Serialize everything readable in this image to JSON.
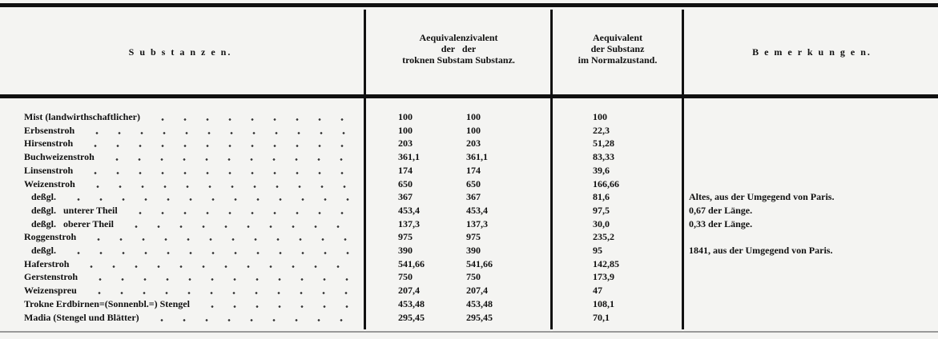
{
  "headers": {
    "substances": "S u b s t a n z e n.",
    "equiv_dry": [
      "Aequivalenzivalent",
      "der   der",
      "troknen Substam Substanz."
    ],
    "equiv_normal": [
      "Aequivalent",
      "der Substanz",
      "im Normalzustand."
    ],
    "remarks": "B e m e r k u n g e n."
  },
  "rows": [
    {
      "name": "Mist (landwirthschaftlicher)",
      "dry": "100",
      "sub": "100",
      "normal": "100",
      "remark": ""
    },
    {
      "name": "Erbsenstroh",
      "dry": "100",
      "sub": "100",
      "normal": "22,3",
      "remark": ""
    },
    {
      "name": "Hirsenstroh",
      "dry": "203",
      "sub": "203",
      "normal": "51,28",
      "remark": ""
    },
    {
      "name": "Buchweizenstroh",
      "dry": "361,1",
      "sub": "361,1",
      "normal": "83,33",
      "remark": ""
    },
    {
      "name": "Linsenstroh",
      "dry": "174",
      "sub": "174",
      "normal": "39,6",
      "remark": ""
    },
    {
      "name": "Weizenstroh",
      "dry": "650",
      "sub": "650",
      "normal": "166,66",
      "remark": ""
    },
    {
      "name": "   deßgl.",
      "dry": "367",
      "sub": "367",
      "normal": "81,6",
      "remark": "Altes, aus der Umgegend von Paris."
    },
    {
      "name": "   deßgl.   unterer Theil",
      "dry": "453,4",
      "sub": "453,4",
      "normal": "97,5",
      "remark": "0,67 der Länge."
    },
    {
      "name": "   deßgl.   oberer Theil",
      "dry": "137,3",
      "sub": "137,3",
      "normal": "30,0",
      "remark": "0,33 der Länge."
    },
    {
      "name": "Roggenstroh",
      "dry": "975",
      "sub": "975",
      "normal": "235,2",
      "remark": ""
    },
    {
      "name": "   deßgl.",
      "dry": "390",
      "sub": "390",
      "normal": "95",
      "remark": "1841, aus der Umgegend von Paris."
    },
    {
      "name": "Haferstroh",
      "dry": "541,66",
      "sub": "541,66",
      "normal": "142,85",
      "remark": ""
    },
    {
      "name": "Gerstenstroh",
      "dry": "750",
      "sub": "750",
      "normal": "173,9",
      "remark": ""
    },
    {
      "name": "Weizenspreu",
      "dry": "207,4",
      "sub": "207,4",
      "normal": "47",
      "remark": ""
    },
    {
      "name": "Trokne Erdbirnen=(Sonnenbl.=) Stengel",
      "dry": "453,48",
      "sub": "453,48",
      "normal": "108,1",
      "remark": ""
    },
    {
      "name": "Madia (Stengel und Blätter)",
      "dry": "295,45",
      "sub": "295,45",
      "normal": "70,1",
      "remark": ""
    }
  ]
}
